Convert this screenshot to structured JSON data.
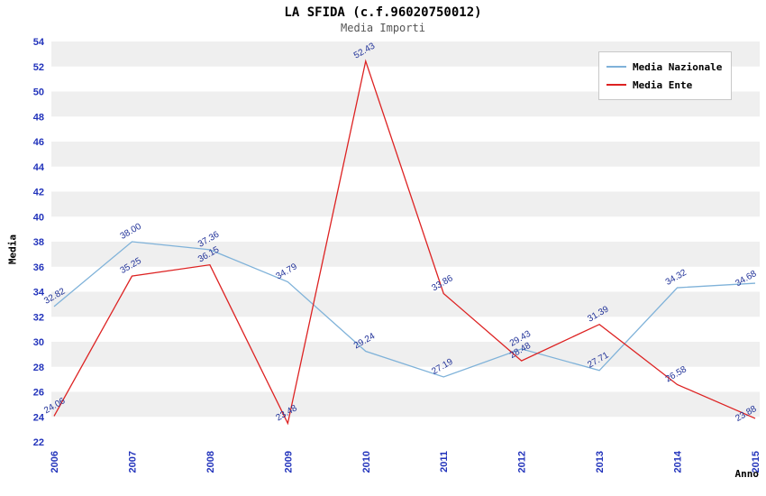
{
  "chart_data": {
    "type": "line",
    "title": "LA SFIDA (c.f.96020750012)",
    "subtitle": "Media Importi",
    "xlabel": "Anno",
    "ylabel": "Media",
    "categories": [
      "2006",
      "2007",
      "2008",
      "2009",
      "2010",
      "2011",
      "2012",
      "2013",
      "2014",
      "2015"
    ],
    "series": [
      {
        "name": "Media Nazionale",
        "color": "#7fb2d9",
        "values": [
          32.82,
          38.0,
          37.36,
          34.79,
          29.24,
          27.19,
          29.43,
          27.71,
          34.32,
          34.68
        ]
      },
      {
        "name": "Media Ente",
        "color": "#dd2222",
        "values": [
          24.06,
          35.25,
          36.15,
          23.48,
          52.43,
          33.86,
          28.48,
          31.39,
          26.58,
          23.88
        ]
      }
    ],
    "ylim": [
      22,
      54
    ],
    "ytick_step": 2,
    "grid": "striped-horizontal",
    "legend_position": "top-right",
    "band_colors": [
      "#ffffff",
      "#efefef"
    ],
    "tick_label_color": "#2233bb",
    "point_label_color": "#223399"
  }
}
